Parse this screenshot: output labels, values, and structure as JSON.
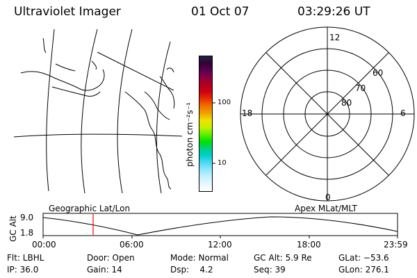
{
  "header": {
    "title": "Ultraviolet Imager",
    "date": "01 Oct 07",
    "time": "03:29:26 UT"
  },
  "colorbar": {
    "unit_label": "photon cm⁻²s⁻¹",
    "ticks": [
      "100",
      "10"
    ],
    "colors": [
      "#222244",
      "#330033",
      "#5a0050",
      "#8a0040",
      "#b00020",
      "#d00010",
      "#e83000",
      "#f07000",
      "#f0a000",
      "#f0e000",
      "#c8f000",
      "#60f000",
      "#00e000",
      "#00d080",
      "#00d0d0",
      "#50d8f0",
      "#90e8ff",
      "#c8f0ff",
      "#e8f8ff",
      "#ffffff"
    ]
  },
  "polar_plot": {
    "mlt_labels": {
      "top": "12",
      "left": "18",
      "right": "6",
      "bottom": "0"
    },
    "lat_labels": [
      "60",
      "70",
      "80"
    ]
  },
  "timeline": {
    "left_label": "Geographic Lat/Lon",
    "right_label": "Apex MLat/MLT",
    "axis_label": "GC Alt",
    "y_ticks": [
      "9.0",
      "1.8"
    ],
    "x_ticks": [
      "00:00",
      "06:00",
      "12:00",
      "18:00",
      "23:59"
    ],
    "current_time_marker_color": "#ff0000"
  },
  "status": {
    "flt": "Flt: LBHL",
    "ip": "IP: 36.0",
    "door": "Door: Open",
    "gain": "Gain: 14",
    "mode": "Mode: Normal",
    "dsp": "Dsp:    4.2",
    "gc_alt": "GC Alt: 5.9 Re",
    "seq": "Seq: 39",
    "glat": "GLat: −53.6",
    "glon": "GLon: 276.1"
  }
}
